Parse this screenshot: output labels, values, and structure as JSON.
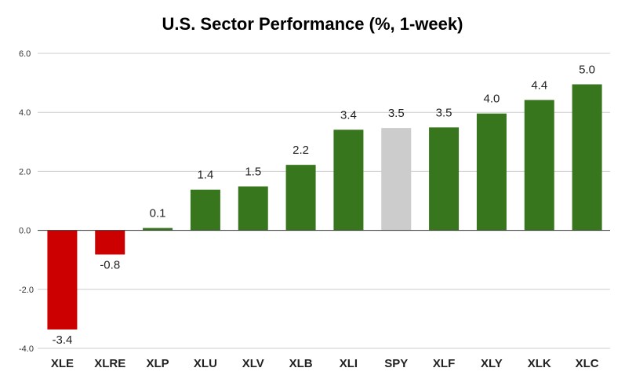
{
  "chart_data": {
    "type": "bar",
    "title": "U.S. Sector Performance (%, 1-week)",
    "categories": [
      "XLE",
      "XLRE",
      "XLP",
      "XLU",
      "XLV",
      "XLB",
      "XLI",
      "SPY",
      "XLF",
      "XLY",
      "XLK",
      "XLC"
    ],
    "values": [
      -3.36,
      -0.82,
      0.08,
      1.38,
      1.49,
      2.22,
      3.41,
      3.47,
      3.49,
      3.96,
      4.42,
      4.95
    ],
    "data_labels": [
      "-3.4",
      "-0.8",
      "0.1",
      "1.4",
      "1.5",
      "2.2",
      "3.4",
      "3.5",
      "3.5",
      "4.0",
      "4.4",
      "5.0"
    ],
    "xlabel": "",
    "ylabel": "",
    "ylim": [
      -4,
      6
    ],
    "yticks": [
      6,
      4,
      2,
      0,
      -2,
      -4
    ],
    "ytick_labels": [
      "6.0",
      "4.0",
      "2.0",
      "0.0",
      "-2.0",
      "-4.0"
    ],
    "grid": true,
    "legend": "none",
    "colors": {
      "positive": "#38761d",
      "negative": "#cc0000",
      "benchmark": "#cccccc",
      "gridline": "#cccccc",
      "zero_line": "#333333"
    },
    "benchmark_category": "SPY"
  }
}
